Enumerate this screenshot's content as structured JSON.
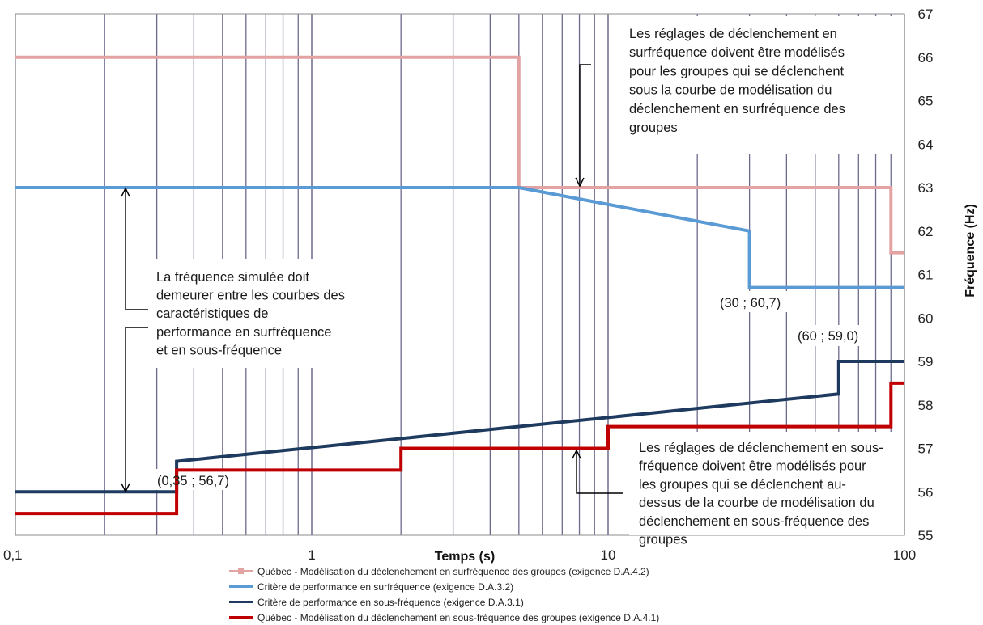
{
  "chart_data": {
    "type": "line",
    "xlabel": "Temps (s)",
    "ylabel": "Fréquence (Hz)",
    "x_scale": "log",
    "xlim": [
      0.1,
      100
    ],
    "ylim": [
      55,
      67
    ],
    "x_ticks": [
      {
        "value": 0.1,
        "label": "0,1"
      },
      {
        "value": 1,
        "label": "1"
      },
      {
        "value": 10,
        "label": "10"
      },
      {
        "value": 100,
        "label": "100"
      }
    ],
    "y_ticks": [
      55,
      56,
      57,
      58,
      59,
      60,
      61,
      62,
      63,
      64,
      65,
      66,
      67
    ],
    "grid": "vertical",
    "legend_position": "bottom",
    "series": [
      {
        "name": "Québec - Modélisation du déclenchement en surfréquence des groupes (exigence D.A.4.2)",
        "color": "#e3a3a3",
        "points": [
          [
            0.1,
            66
          ],
          [
            5,
            66
          ],
          [
            5,
            63
          ],
          [
            90,
            63
          ],
          [
            90,
            61.5
          ],
          [
            100,
            61.5
          ]
        ]
      },
      {
        "name": "Critère de performance en surfréquence (exigence D.A.3.2)",
        "color": "#5b9bd5",
        "points": [
          [
            0.1,
            63
          ],
          [
            5,
            63
          ],
          [
            30,
            62
          ],
          [
            30,
            60.7
          ],
          [
            100,
            60.7
          ]
        ]
      },
      {
        "name": "Critère de performance en sous-fréquence (exigence D.A.3.1)",
        "color": "#1f3a5f",
        "points": [
          [
            0.1,
            56
          ],
          [
            0.35,
            56
          ],
          [
            0.35,
            56.7
          ],
          [
            60,
            58.25
          ],
          [
            60,
            59
          ],
          [
            100,
            59
          ]
        ]
      },
      {
        "name": "Québec - Modélisation du déclenchement en sous-fréquence des groupes (exigence D.A.4.1)",
        "color": "#c00000",
        "points": [
          [
            0.1,
            55.5
          ],
          [
            0.35,
            55.5
          ],
          [
            0.35,
            56.5
          ],
          [
            2,
            56.5
          ],
          [
            2,
            57
          ],
          [
            10,
            57
          ],
          [
            10,
            57.5
          ],
          [
            90,
            57.5
          ],
          [
            90,
            58.5
          ],
          [
            100,
            58.5
          ]
        ]
      }
    ],
    "annotations": [
      {
        "id": "top",
        "lines": [
          "Les réglages de déclenchement en",
          "surfréquence doivent être modélisés",
          "pour les groupes qui se déclenchent",
          "sous la courbe  de modélisation du",
          "déclenchement en surfréquence des",
          "groupes"
        ]
      },
      {
        "id": "middle",
        "lines": [
          "La fréquence simulée doit",
          "demeurer entre les courbes des",
          "caractéristiques de",
          "performance en surfréquence",
          "et en sous-fréquence"
        ]
      },
      {
        "id": "bottom",
        "lines": [
          "Les réglages de déclenchement en sous-",
          "fréquence doivent être modélisés pour",
          "les groupes qui se déclenchent au-",
          "dessus de la courbe  de modélisation du",
          "déclenchement en sous-fréquence des",
          "groupes"
        ]
      }
    ],
    "point_labels": [
      "(0,35 ; 56,7)",
      "(30 ; 60,7)",
      "(60 ; 59,0)"
    ]
  }
}
